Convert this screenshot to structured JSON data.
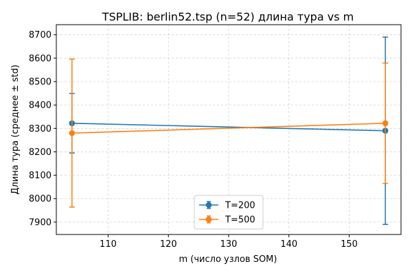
{
  "chart_data": {
    "type": "line",
    "title": "TSPLIB: berlin52.tsp (n=52) длина тура vs m",
    "xlabel": "m (число узлов SOM)",
    "ylabel": "Длина тура (среднее ± std)",
    "xlim": [
      101.4,
      158.6
    ],
    "ylim": [
      7847,
      8743
    ],
    "x_ticks": [
      110,
      120,
      130,
      140,
      150
    ],
    "y_ticks": [
      7900,
      8000,
      8100,
      8200,
      8300,
      8400,
      8500,
      8600,
      8700
    ],
    "grid": true,
    "legend_position": "lower-center",
    "x": [
      104,
      156
    ],
    "series": [
      {
        "name": "T=200",
        "color": "#1f77b4",
        "values": [
          8322,
          8290
        ],
        "std": [
          127,
          400
        ]
      },
      {
        "name": "T=500",
        "color": "#ff7f0e",
        "values": [
          8280,
          8322
        ],
        "std": [
          316,
          257
        ]
      }
    ]
  }
}
